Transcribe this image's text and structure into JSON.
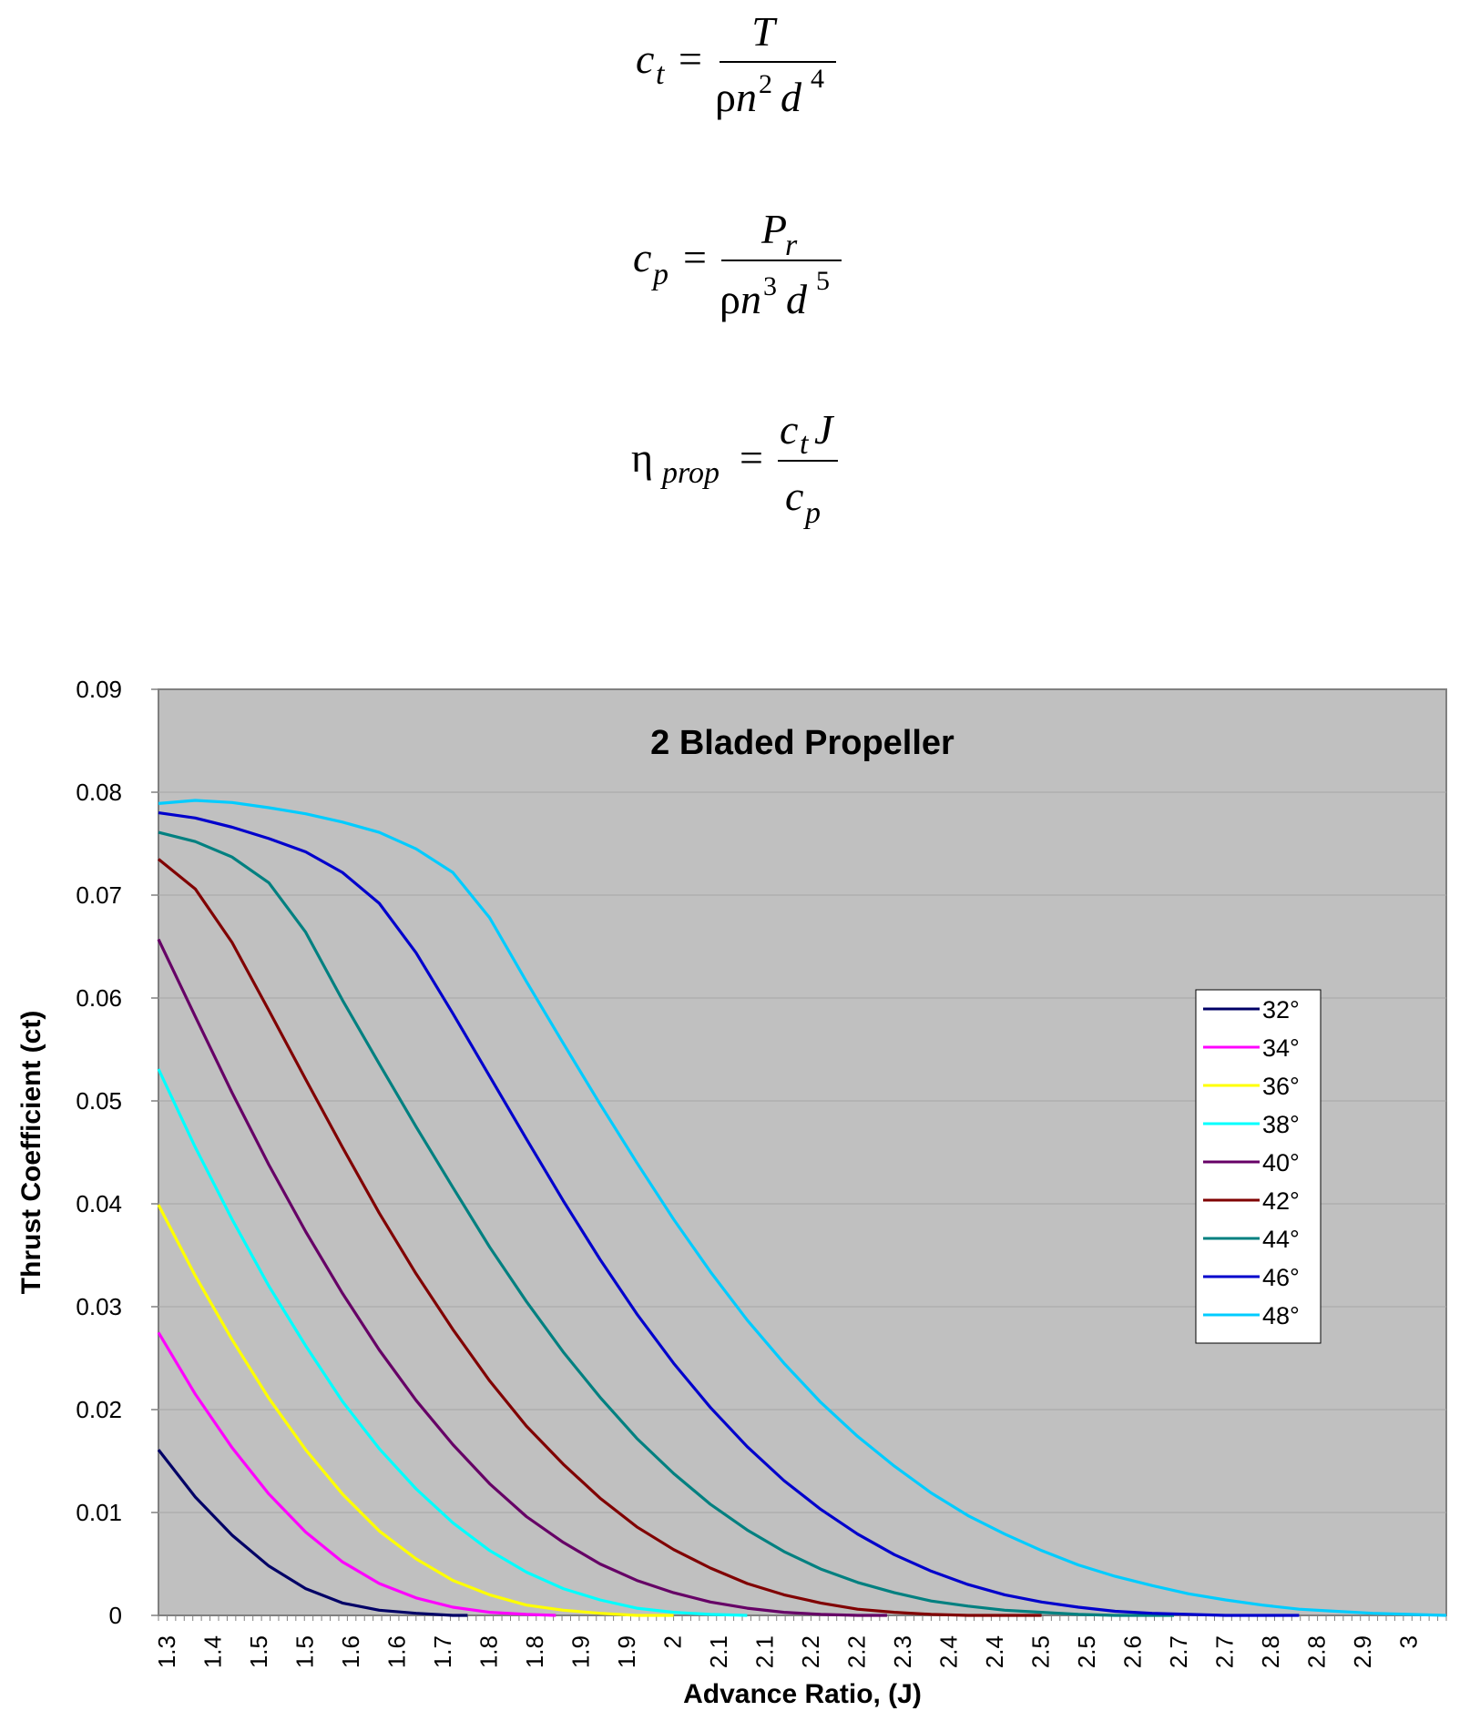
{
  "formulas": {
    "ct": {
      "lhs": "c",
      "lhs_sub": "t",
      "num": "T",
      "den_rho": "ρ",
      "den_n": "n",
      "den_n_exp": "2",
      "den_d": "d",
      "den_d_exp": "4"
    },
    "cp": {
      "lhs": "c",
      "lhs_sub": "p",
      "num": "P",
      "num_sub": "r",
      "den_rho": "ρ",
      "den_n": "n",
      "den_n_exp": "3",
      "den_d": "d",
      "den_d_exp": "5"
    },
    "eta": {
      "lhs": "η",
      "lhs_sub": "prop",
      "num_c": "c",
      "num_sub": "t",
      "num_j": "J",
      "den": "c",
      "den_sub": "p"
    }
  },
  "chart_data": {
    "type": "line",
    "title": "2 Bladed Propeller",
    "xlabel": "Advance Ratio, (J)",
    "ylabel": "Thrust Coefficient (ct)",
    "ylim": [
      0,
      0.09
    ],
    "yticks": [
      "0",
      "0.01",
      "0.02",
      "0.03",
      "0.04",
      "0.05",
      "0.06",
      "0.07",
      "0.08",
      "0.09"
    ],
    "xlim": [
      1.3,
      3.05
    ],
    "xtick_labels": [
      "1.3",
      "1.4",
      "1.5",
      "1.5",
      "1.6",
      "1.6",
      "1.7",
      "1.8",
      "1.8",
      "1.9",
      "1.9",
      "2",
      "2.1",
      "2.1",
      "2.2",
      "2.2",
      "2.3",
      "2.4",
      "2.4",
      "2.5",
      "2.5",
      "2.6",
      "2.7",
      "2.7",
      "2.8",
      "2.8",
      "2.9",
      "3"
    ],
    "grid": true,
    "legend_position": "right",
    "plot_background": "#c0c0c0",
    "series": [
      {
        "name": "32°",
        "color": "#000066",
        "x": [
          1.3,
          1.35,
          1.4,
          1.45,
          1.5,
          1.55,
          1.6,
          1.65,
          1.7,
          1.72
        ],
        "y": [
          0.0161,
          0.0115,
          0.0078,
          0.0048,
          0.0026,
          0.0012,
          0.0005,
          0.0002,
          0.0,
          0.0
        ]
      },
      {
        "name": "34°",
        "color": "#ff00ff",
        "x": [
          1.3,
          1.35,
          1.4,
          1.45,
          1.5,
          1.55,
          1.6,
          1.65,
          1.7,
          1.75,
          1.8,
          1.84
        ],
        "y": [
          0.0275,
          0.0215,
          0.0163,
          0.0118,
          0.0081,
          0.0052,
          0.0031,
          0.0017,
          0.0008,
          0.0003,
          0.0001,
          0.0
        ]
      },
      {
        "name": "36°",
        "color": "#ffff00",
        "x": [
          1.3,
          1.35,
          1.4,
          1.45,
          1.5,
          1.55,
          1.6,
          1.65,
          1.7,
          1.75,
          1.8,
          1.85,
          1.9,
          1.95,
          2.0
        ],
        "y": [
          0.0399,
          0.033,
          0.0268,
          0.0211,
          0.0161,
          0.0118,
          0.0082,
          0.0055,
          0.0034,
          0.002,
          0.001,
          0.0005,
          0.0002,
          0.0,
          0.0
        ]
      },
      {
        "name": "38°",
        "color": "#00ffff",
        "x": [
          1.3,
          1.35,
          1.4,
          1.45,
          1.5,
          1.55,
          1.6,
          1.65,
          1.7,
          1.75,
          1.8,
          1.85,
          1.9,
          1.95,
          2.0,
          2.05,
          2.1
        ],
        "y": [
          0.0531,
          0.0455,
          0.0385,
          0.032,
          0.0262,
          0.0208,
          0.0162,
          0.0123,
          0.009,
          0.0063,
          0.0042,
          0.0026,
          0.0015,
          0.0007,
          0.0003,
          0.0001,
          0.0
        ]
      },
      {
        "name": "40°",
        "color": "#660066",
        "x": [
          1.3,
          1.35,
          1.4,
          1.45,
          1.5,
          1.55,
          1.6,
          1.65,
          1.7,
          1.75,
          1.8,
          1.85,
          1.9,
          1.95,
          2.0,
          2.05,
          2.1,
          2.15,
          2.2,
          2.25,
          2.29
        ],
        "y": [
          0.0657,
          0.0582,
          0.0508,
          0.0438,
          0.0373,
          0.0313,
          0.0258,
          0.0209,
          0.0166,
          0.0128,
          0.0096,
          0.0071,
          0.005,
          0.0034,
          0.0022,
          0.0013,
          0.0007,
          0.0003,
          0.0001,
          0.0,
          0.0
        ]
      },
      {
        "name": "42°",
        "color": "#800000",
        "x": [
          1.3,
          1.35,
          1.4,
          1.45,
          1.5,
          1.55,
          1.6,
          1.65,
          1.7,
          1.75,
          1.8,
          1.85,
          1.9,
          1.95,
          2.0,
          2.05,
          2.1,
          2.15,
          2.2,
          2.25,
          2.3,
          2.35,
          2.4,
          2.45,
          2.5
        ],
        "y": [
          0.0735,
          0.0706,
          0.0654,
          0.0588,
          0.0521,
          0.0455,
          0.0391,
          0.0332,
          0.0278,
          0.0228,
          0.0184,
          0.0147,
          0.0114,
          0.0086,
          0.0064,
          0.0046,
          0.0031,
          0.002,
          0.0012,
          0.0006,
          0.0003,
          0.0001,
          0.0,
          0.0,
          0.0
        ]
      },
      {
        "name": "44°",
        "color": "#008080",
        "x": [
          1.3,
          1.35,
          1.4,
          1.45,
          1.5,
          1.55,
          1.6,
          1.65,
          1.7,
          1.75,
          1.8,
          1.85,
          1.9,
          1.95,
          2.0,
          2.05,
          2.1,
          2.15,
          2.2,
          2.25,
          2.3,
          2.35,
          2.4,
          2.45,
          2.5,
          2.55,
          2.6,
          2.65,
          2.68
        ],
        "y": [
          0.0761,
          0.0752,
          0.0737,
          0.0712,
          0.0664,
          0.0598,
          0.0536,
          0.0475,
          0.0416,
          0.0358,
          0.0305,
          0.0256,
          0.0212,
          0.0172,
          0.0138,
          0.0108,
          0.0083,
          0.0062,
          0.0045,
          0.0032,
          0.0022,
          0.0014,
          0.0009,
          0.0005,
          0.0003,
          0.0001,
          0.0,
          0.0,
          0.0
        ]
      },
      {
        "name": "46°",
        "color": "#0000cc",
        "x": [
          1.3,
          1.35,
          1.4,
          1.45,
          1.5,
          1.55,
          1.6,
          1.65,
          1.7,
          1.75,
          1.8,
          1.85,
          1.9,
          1.95,
          2.0,
          2.05,
          2.1,
          2.15,
          2.2,
          2.25,
          2.3,
          2.35,
          2.4,
          2.45,
          2.5,
          2.55,
          2.6,
          2.65,
          2.7,
          2.75,
          2.8,
          2.85
        ],
        "y": [
          0.078,
          0.0775,
          0.0766,
          0.0755,
          0.0742,
          0.0722,
          0.0692,
          0.0644,
          0.0585,
          0.0524,
          0.0463,
          0.0403,
          0.0346,
          0.0293,
          0.0245,
          0.0202,
          0.0164,
          0.0131,
          0.0103,
          0.0079,
          0.0059,
          0.0043,
          0.003,
          0.002,
          0.0013,
          0.0008,
          0.0004,
          0.0002,
          0.0001,
          0.0,
          0.0,
          0.0
        ]
      },
      {
        "name": "48°",
        "color": "#00ccff",
        "x": [
          1.3,
          1.35,
          1.4,
          1.45,
          1.5,
          1.55,
          1.6,
          1.65,
          1.7,
          1.75,
          1.8,
          1.85,
          1.9,
          1.95,
          2.0,
          2.05,
          2.1,
          2.15,
          2.2,
          2.25,
          2.3,
          2.35,
          2.4,
          2.45,
          2.5,
          2.55,
          2.6,
          2.65,
          2.7,
          2.75,
          2.8,
          2.85,
          2.9,
          2.95,
          3.0,
          3.05
        ],
        "y": [
          0.0789,
          0.0792,
          0.079,
          0.0785,
          0.0779,
          0.0771,
          0.0761,
          0.0745,
          0.0722,
          0.0678,
          0.0616,
          0.0556,
          0.0497,
          0.044,
          0.0385,
          0.0334,
          0.0287,
          0.0245,
          0.0207,
          0.0174,
          0.0145,
          0.0119,
          0.0097,
          0.0079,
          0.0063,
          0.0049,
          0.0038,
          0.0029,
          0.0021,
          0.0015,
          0.001,
          0.0006,
          0.0004,
          0.0002,
          0.0001,
          0.0
        ]
      }
    ]
  }
}
